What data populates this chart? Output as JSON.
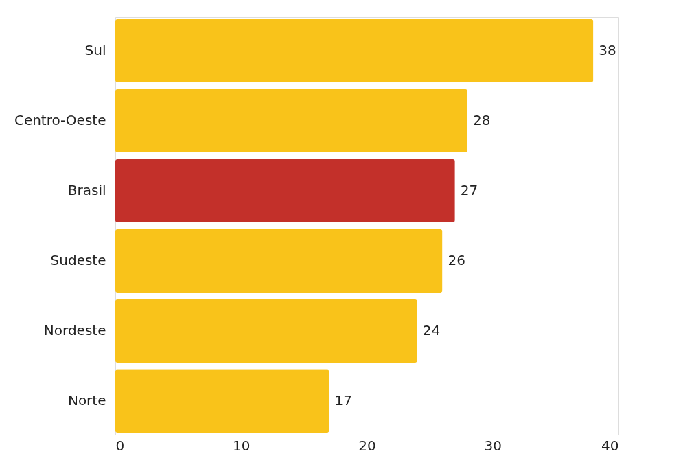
{
  "chart_data": {
    "type": "bar",
    "orientation": "horizontal",
    "categories": [
      "Sul",
      "Centro-Oeste",
      "Brasil",
      "Sudeste",
      "Nordeste",
      "Norte"
    ],
    "values": [
      38,
      28,
      27,
      26,
      24,
      17
    ],
    "colors": [
      "#f9c31a",
      "#f9c31a",
      "#c3302a",
      "#f9c31a",
      "#f9c31a",
      "#f9c31a"
    ],
    "xlim": [
      0,
      40
    ],
    "xticks": [
      0,
      10,
      20,
      30,
      40
    ],
    "data_labels": true,
    "grid": false
  }
}
